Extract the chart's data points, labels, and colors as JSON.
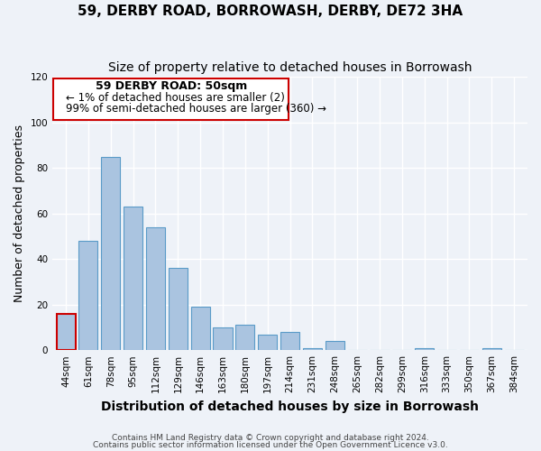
{
  "title": "59, DERBY ROAD, BORROWASH, DERBY, DE72 3HA",
  "subtitle": "Size of property relative to detached houses in Borrowash",
  "xlabel": "Distribution of detached houses by size in Borrowash",
  "ylabel": "Number of detached properties",
  "categories": [
    "44sqm",
    "61sqm",
    "78sqm",
    "95sqm",
    "112sqm",
    "129sqm",
    "146sqm",
    "163sqm",
    "180sqm",
    "197sqm",
    "214sqm",
    "231sqm",
    "248sqm",
    "265sqm",
    "282sqm",
    "299sqm",
    "316sqm",
    "333sqm",
    "350sqm",
    "367sqm",
    "384sqm"
  ],
  "values": [
    16,
    48,
    85,
    63,
    54,
    36,
    19,
    10,
    11,
    7,
    8,
    1,
    4,
    0,
    0,
    0,
    1,
    0,
    0,
    1,
    0
  ],
  "bar_color": "#aac4e0",
  "highlight_bar_index": 0,
  "highlight_bar_edge_color": "#cc0000",
  "normal_bar_edge_color": "#5a9bc8",
  "ylim": [
    0,
    120
  ],
  "yticks": [
    0,
    20,
    40,
    60,
    80,
    100,
    120
  ],
  "annotation_title": "59 DERBY ROAD: 50sqm",
  "annotation_line1": "← 1% of detached houses are smaller (2)",
  "annotation_line2": "99% of semi-detached houses are larger (360) →",
  "annotation_box_edge_color": "#cc0000",
  "footnote1": "Contains HM Land Registry data © Crown copyright and database right 2024.",
  "footnote2": "Contains public sector information licensed under the Open Government Licence v3.0.",
  "bg_color": "#eef2f8",
  "grid_color": "#ffffff",
  "title_fontsize": 11,
  "subtitle_fontsize": 10,
  "xlabel_fontsize": 10,
  "ylabel_fontsize": 9,
  "tick_fontsize": 7.5,
  "annotation_title_fontsize": 9,
  "annotation_text_fontsize": 8.5,
  "footnote_fontsize": 6.5
}
